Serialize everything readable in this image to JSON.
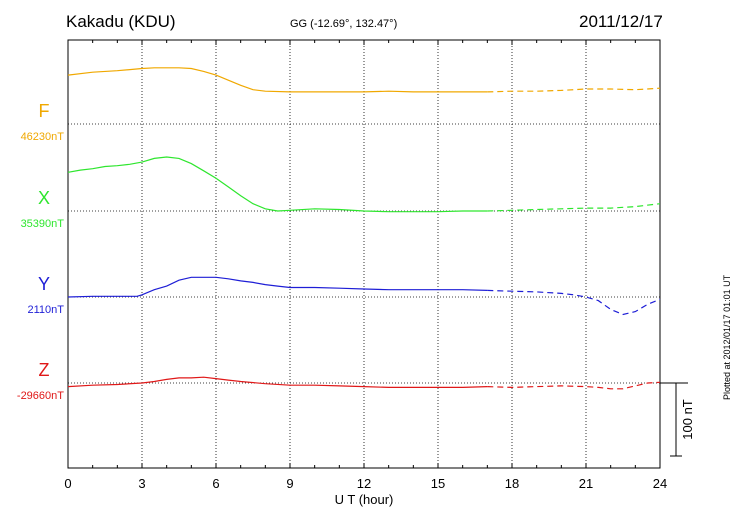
{
  "header": {
    "station": "Kakadu (KDU)",
    "coords": "GG (-12.69°, 132.47°)",
    "date": "2011/12/17"
  },
  "footer": {
    "plotted": "Plotted at 2012/01/17 01:01  UT"
  },
  "chart_data": {
    "type": "line",
    "xlabel": "U T (hour)",
    "xlim": [
      0,
      24
    ],
    "xticks": [
      0,
      3,
      6,
      9,
      12,
      15,
      18,
      21,
      24
    ],
    "grid": true,
    "scale_bar": {
      "label": "100 nT",
      "value": 100
    },
    "series": [
      {
        "name": "F",
        "baseline_label": "46230nT",
        "baseline": 46230,
        "color": "#f0a800",
        "x": [
          0,
          1,
          2,
          3,
          3.5,
          4,
          4.5,
          5,
          5.5,
          6,
          6.5,
          7,
          7.5,
          8,
          9,
          10,
          11,
          12,
          13,
          14,
          15,
          16,
          17,
          18,
          19,
          20,
          21,
          22,
          23,
          24
        ],
        "y": [
          67,
          71,
          73,
          76,
          77,
          77,
          77,
          76,
          72,
          67,
          60,
          53,
          47,
          45,
          44,
          44,
          44,
          44,
          45,
          44,
          44,
          44,
          44,
          45,
          45,
          46,
          48,
          48,
          47,
          49
        ],
        "dashed_after": 17
      },
      {
        "name": "X",
        "baseline_label": "35390nT",
        "baseline": 35390,
        "color": "#2ee62e",
        "x": [
          0,
          0.5,
          1,
          1.5,
          2,
          2.5,
          3,
          3.5,
          4,
          4.5,
          5,
          5.5,
          6,
          6.5,
          7,
          7.5,
          8,
          8.5,
          9,
          10,
          11,
          12,
          13,
          14,
          15,
          16,
          17,
          18,
          19,
          20,
          21,
          22,
          23,
          24
        ],
        "y": [
          53,
          56,
          58,
          61,
          62,
          64,
          67,
          72,
          74,
          72,
          65,
          55,
          45,
          33,
          21,
          10,
          3,
          0,
          1,
          3,
          2,
          0,
          -1,
          -1,
          -1,
          0,
          0,
          1,
          2,
          3,
          4,
          4,
          6,
          10
        ],
        "dashed_after": 17
      },
      {
        "name": "Y",
        "baseline_label": "2110nT",
        "baseline": 2110,
        "color": "#1e1ed6",
        "x": [
          0,
          1,
          2,
          2.8,
          3,
          3.5,
          4,
          4.5,
          5,
          5.5,
          6,
          6.5,
          7,
          7.5,
          8,
          8.5,
          9,
          10,
          11,
          12,
          13,
          14,
          15,
          16,
          17,
          18,
          19,
          20,
          20.5,
          21,
          21.5,
          22,
          22.5,
          23,
          23.5,
          24
        ],
        "y": [
          0,
          1,
          1,
          1,
          3,
          10,
          15,
          23,
          27,
          27,
          27,
          25,
          22,
          20,
          17,
          15,
          13,
          13,
          12,
          11,
          10,
          10,
          10,
          10,
          9,
          8,
          7,
          5,
          3,
          0,
          -5,
          -17,
          -24,
          -20,
          -10,
          -3
        ],
        "dashed_after": 17
      },
      {
        "name": "Z",
        "baseline_label": "-29660nT",
        "baseline": -29660,
        "color": "#e01818",
        "x": [
          0,
          1,
          2,
          3,
          3.5,
          4,
          4.5,
          5,
          5.5,
          6,
          6.5,
          7,
          8,
          9,
          10,
          11,
          12,
          13,
          14,
          15,
          16,
          17,
          18,
          19,
          20,
          21,
          21.5,
          22,
          22.5,
          23,
          23.5,
          24
        ],
        "y": [
          -5,
          -3,
          -2,
          0,
          2,
          5,
          7,
          7,
          8,
          6,
          4,
          2,
          -1,
          -3,
          -3,
          -4,
          -5,
          -6,
          -6,
          -6,
          -6,
          -5,
          -6,
          -5,
          -4,
          -5,
          -6,
          -8,
          -8,
          -4,
          0,
          1
        ],
        "dashed_after": 17
      }
    ]
  }
}
